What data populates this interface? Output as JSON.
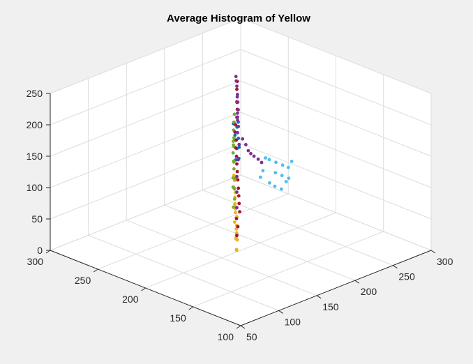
{
  "chart_data": {
    "type": "scatter",
    "title": "Average Histogram of Yellow",
    "xlabel": "",
    "ylabel": "",
    "zlabel": "",
    "xlim": [
      50,
      300
    ],
    "ylim": [
      100,
      300
    ],
    "zlim": [
      0,
      250
    ],
    "x_ticks": [
      50,
      100,
      150,
      200,
      250,
      300
    ],
    "y_ticks": [
      100,
      150,
      200,
      250,
      300
    ],
    "z_ticks": [
      0,
      50,
      100,
      150,
      200,
      250
    ],
    "grid": true,
    "view": "3d",
    "series": [
      {
        "color": "#0072BD",
        "points": [
          [
            175,
            205,
            160
          ],
          [
            180,
            210,
            175
          ],
          [
            170,
            198,
            150
          ],
          [
            185,
            215,
            190
          ],
          [
            178,
            205,
            200
          ],
          [
            172,
            200,
            180
          ],
          [
            182,
            212,
            165
          ],
          [
            176,
            206,
            140
          ],
          [
            168,
            196,
            170
          ],
          [
            188,
            218,
            185
          ],
          [
            174,
            203,
            195
          ],
          [
            180,
            208,
            155
          ]
        ]
      },
      {
        "color": "#EDB120",
        "points": [
          [
            140,
            175,
            70
          ],
          [
            145,
            180,
            80
          ],
          [
            150,
            185,
            90
          ],
          [
            135,
            172,
            60
          ],
          [
            142,
            178,
            55
          ],
          [
            155,
            190,
            100
          ],
          [
            148,
            183,
            75
          ],
          [
            138,
            174,
            50
          ],
          [
            132,
            170,
            40
          ],
          [
            146,
            181,
            65
          ],
          [
            152,
            187,
            85
          ],
          [
            160,
            195,
            110
          ],
          [
            144,
            180,
            45
          ],
          [
            136,
            173,
            35
          ],
          [
            150,
            186,
            95
          ],
          [
            158,
            192,
            105
          ],
          [
            141,
            177,
            58
          ],
          [
            147,
            184,
            68
          ],
          [
            153,
            188,
            78
          ],
          [
            162,
            196,
            120
          ],
          [
            139,
            176,
            52
          ],
          [
            143,
            179,
            62
          ],
          [
            156,
            191,
            88
          ],
          [
            165,
            199,
            125
          ]
        ]
      },
      {
        "color": "#77AC30",
        "points": [
          [
            150,
            188,
            120
          ],
          [
            160,
            195,
            140
          ],
          [
            165,
            200,
            160
          ],
          [
            170,
            203,
            180
          ],
          [
            155,
            190,
            130
          ],
          [
            162,
            197,
            150
          ],
          [
            168,
            202,
            170
          ],
          [
            158,
            193,
            110
          ],
          [
            152,
            188,
            100
          ],
          [
            172,
            205,
            190
          ],
          [
            175,
            207,
            200
          ],
          [
            148,
            186,
            90
          ],
          [
            166,
            200,
            145
          ],
          [
            171,
            204,
            165
          ],
          [
            178,
            209,
            210
          ],
          [
            160,
            196,
            125
          ],
          [
            154,
            190,
            115
          ],
          [
            169,
            203,
            175
          ]
        ]
      },
      {
        "color": "#A2142F",
        "points": [
          [
            155,
            185,
            80
          ],
          [
            165,
            195,
            120
          ],
          [
            175,
            205,
            160
          ],
          [
            185,
            212,
            200
          ],
          [
            170,
            200,
            140
          ],
          [
            160,
            190,
            100
          ],
          [
            180,
            210,
            180
          ],
          [
            190,
            216,
            220
          ],
          [
            150,
            183,
            60
          ],
          [
            168,
            198,
            130
          ],
          [
            178,
            207,
            170
          ],
          [
            195,
            220,
            235
          ],
          [
            158,
            188,
            90
          ],
          [
            172,
            202,
            150
          ],
          [
            188,
            214,
            210
          ],
          [
            145,
            180,
            50
          ],
          [
            162,
            192,
            110
          ],
          [
            182,
            211,
            190
          ],
          [
            198,
            222,
            245
          ],
          [
            152,
            186,
            70
          ]
        ]
      },
      {
        "color": "#7E2F8E",
        "points": [
          [
            190,
            215,
            220
          ],
          [
            192,
            217,
            230
          ],
          [
            188,
            213,
            210
          ],
          [
            195,
            220,
            240
          ],
          [
            185,
            212,
            200
          ],
          [
            198,
            223,
            245
          ],
          [
            193,
            218,
            225
          ],
          [
            187,
            213,
            205
          ],
          [
            200,
            225,
            250
          ],
          [
            205,
            222,
            150
          ],
          [
            210,
            220,
            130
          ],
          [
            215,
            218,
            120
          ],
          [
            208,
            221,
            140
          ],
          [
            212,
            219,
            125
          ],
          [
            218,
            216,
            115
          ],
          [
            220,
            214,
            110
          ],
          [
            202,
            224,
            170
          ],
          [
            196,
            220,
            185
          ],
          [
            183,
            208,
            160
          ],
          [
            178,
            205,
            140
          ],
          [
            170,
            200,
            120
          ],
          [
            165,
            196,
            100
          ],
          [
            160,
            192,
            80
          ],
          [
            191,
            216,
            195
          ],
          [
            194,
            219,
            215
          ],
          [
            186,
            212,
            175
          ]
        ]
      },
      {
        "color": "#4DBEEE",
        "points": [
          [
            240,
            215,
            100
          ],
          [
            245,
            212,
            95
          ],
          [
            250,
            210,
            90
          ],
          [
            235,
            218,
            105
          ],
          [
            238,
            214,
            85
          ],
          [
            243,
            211,
            80
          ],
          [
            248,
            208,
            75
          ],
          [
            230,
            218,
            110
          ],
          [
            233,
            216,
            70
          ],
          [
            228,
            219,
            90
          ],
          [
            252,
            208,
            100
          ],
          [
            236,
            213,
            65
          ],
          [
            241,
            210,
            60
          ],
          [
            246,
            209,
            70
          ],
          [
            226,
            220,
            80
          ]
        ]
      }
    ]
  }
}
